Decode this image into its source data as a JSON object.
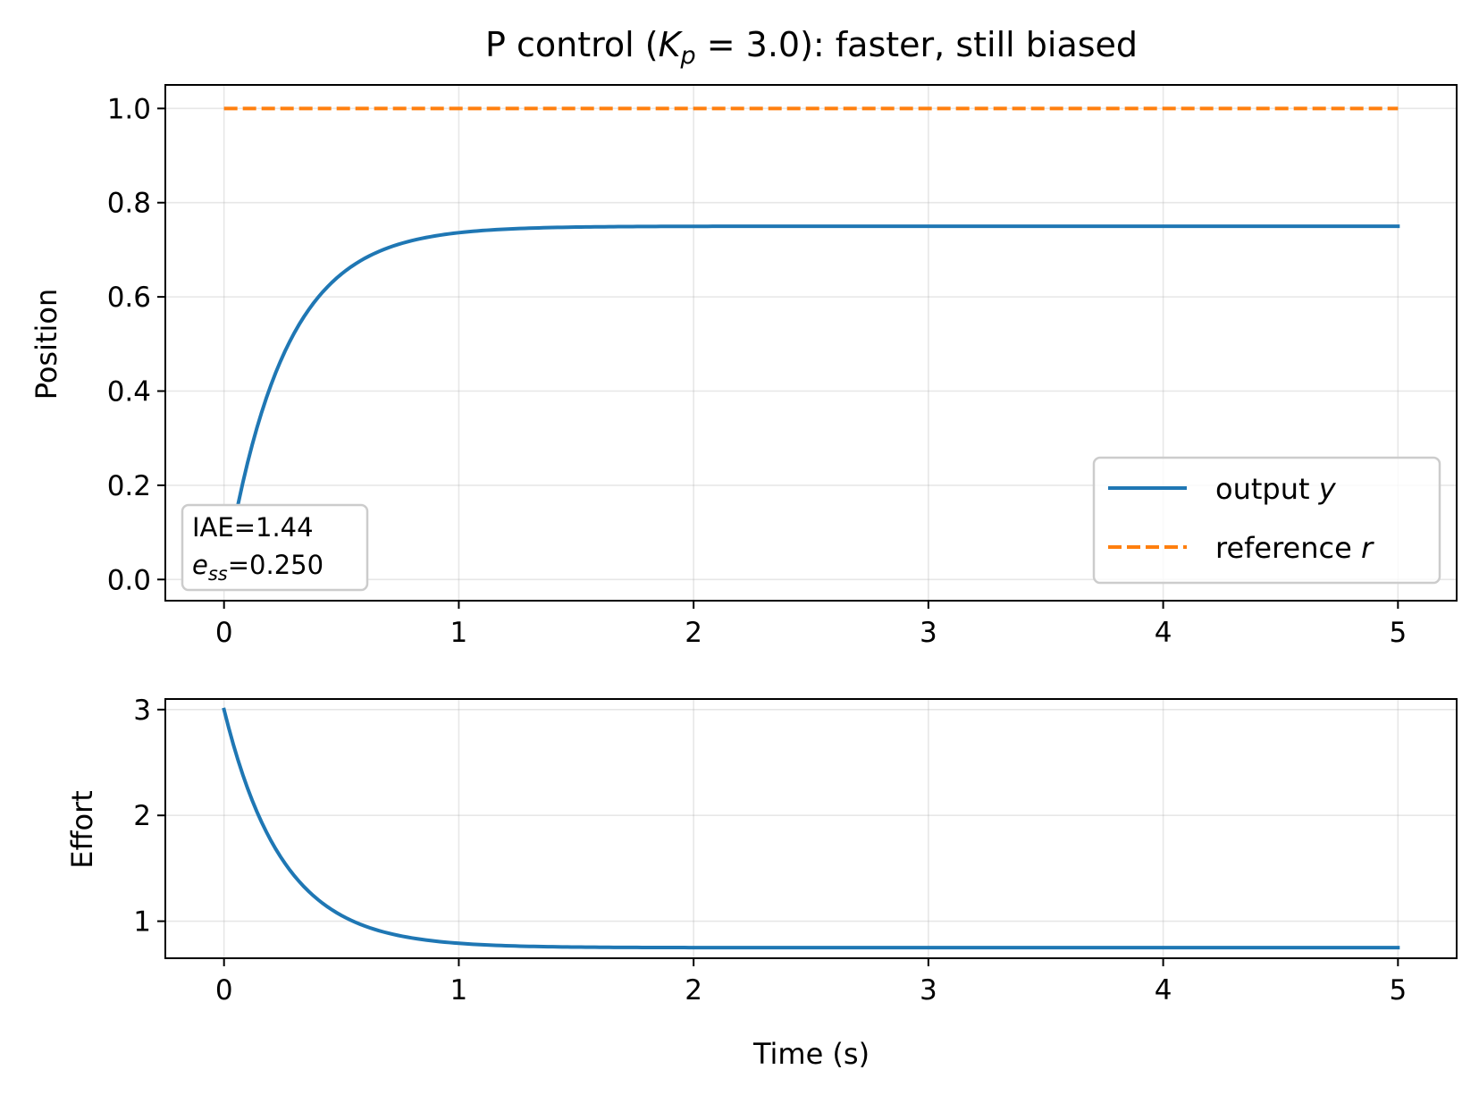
{
  "chart_data": [
    {
      "type": "line",
      "title": "P control (K_p = 3.0): faster, still biased",
      "title_parts": {
        "prefix": "P control (",
        "k": "K",
        "p": "p",
        "eq": " = 3.0): faster, still biased"
      },
      "xlabel": "",
      "ylabel": "Position",
      "xlim": [
        -0.25,
        5.25
      ],
      "ylim": [
        -0.045,
        1.05
      ],
      "xticks": [
        0,
        1,
        2,
        3,
        4,
        5
      ],
      "xtick_labels": [
        "0",
        "1",
        "2",
        "3",
        "4",
        "5"
      ],
      "yticks": [
        0.0,
        0.2,
        0.4,
        0.6,
        0.8,
        1.0
      ],
      "ytick_labels": [
        "0.0",
        "0.2",
        "0.4",
        "0.6",
        "0.8",
        "1.0"
      ],
      "grid": true,
      "legend_position": "lower-right",
      "series": [
        {
          "name": "output",
          "name_var": "y",
          "color": "#1f77b4",
          "style": "solid",
          "model": "first_order_response",
          "final": 0.75,
          "rate": 4.0,
          "t_start": 0,
          "t_end": 5
        },
        {
          "name": "reference",
          "name_var": "r",
          "color": "#ff7f0e",
          "style": "dashed",
          "model": "constant",
          "value": 1.0,
          "t_start": 0,
          "t_end": 5
        }
      ],
      "annotation": {
        "line1": "IAE=1.44",
        "line2_var": "e",
        "line2_sub": "ss",
        "line2_value": "=0.250",
        "position": "lower-left"
      }
    },
    {
      "type": "line",
      "title": "",
      "xlabel": "Time (s)",
      "ylabel": "Effort",
      "xlim": [
        -0.25,
        5.25
      ],
      "ylim": [
        0.65,
        3.1
      ],
      "xticks": [
        0,
        1,
        2,
        3,
        4,
        5
      ],
      "xtick_labels": [
        "0",
        "1",
        "2",
        "3",
        "4",
        "5"
      ],
      "yticks": [
        1,
        2,
        3
      ],
      "ytick_labels": [
        "1",
        "2",
        "3"
      ],
      "grid": true,
      "series": [
        {
          "name": "effort",
          "color": "#1f77b4",
          "style": "solid",
          "model": "decay",
          "start": 3.0,
          "final": 0.75,
          "rate": 4.0,
          "t_start": 0,
          "t_end": 5
        }
      ]
    }
  ]
}
